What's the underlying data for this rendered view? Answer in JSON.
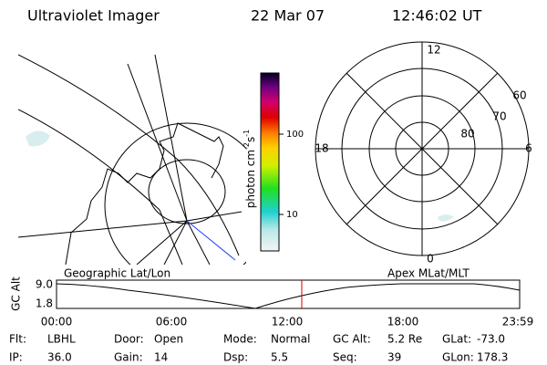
{
  "header": {
    "title": "Ultraviolet Imager",
    "date": "22 Mar 07",
    "time": "12:46:02 UT"
  },
  "colorbar": {
    "unit": [
      "photon cm",
      "-2",
      "s",
      "-1"
    ],
    "ticks": [
      "100",
      "10"
    ]
  },
  "polar": {
    "mlt": [
      "12",
      "6",
      "0",
      "18"
    ],
    "mlat": [
      "60",
      "70",
      "80"
    ]
  },
  "altitude": {
    "left_label": "Geographic Lat/Lon",
    "right_label": "Apex MLat/MLT",
    "y_label": "GC Alt",
    "y_ticks": [
      "9.0",
      "1.8"
    ],
    "x_ticks": [
      "00:00",
      "06:00",
      "12:00",
      "18:00",
      "23:59"
    ]
  },
  "footer": {
    "rows": [
      [
        [
          "Flt:",
          "LBHL"
        ],
        [
          "Door:",
          "Open"
        ],
        [
          "Mode:",
          "Normal"
        ],
        [
          "GC Alt:",
          "5.2 Re"
        ],
        [
          "GLat:",
          "-73.0"
        ]
      ],
      [
        [
          "IP:",
          "36.0"
        ],
        [
          "Gain:",
          "14"
        ],
        [
          "Dsp:",
          "5.5"
        ],
        [
          "Seq:",
          "39"
        ],
        [
          "GLon:",
          "178.3"
        ]
      ]
    ]
  }
}
